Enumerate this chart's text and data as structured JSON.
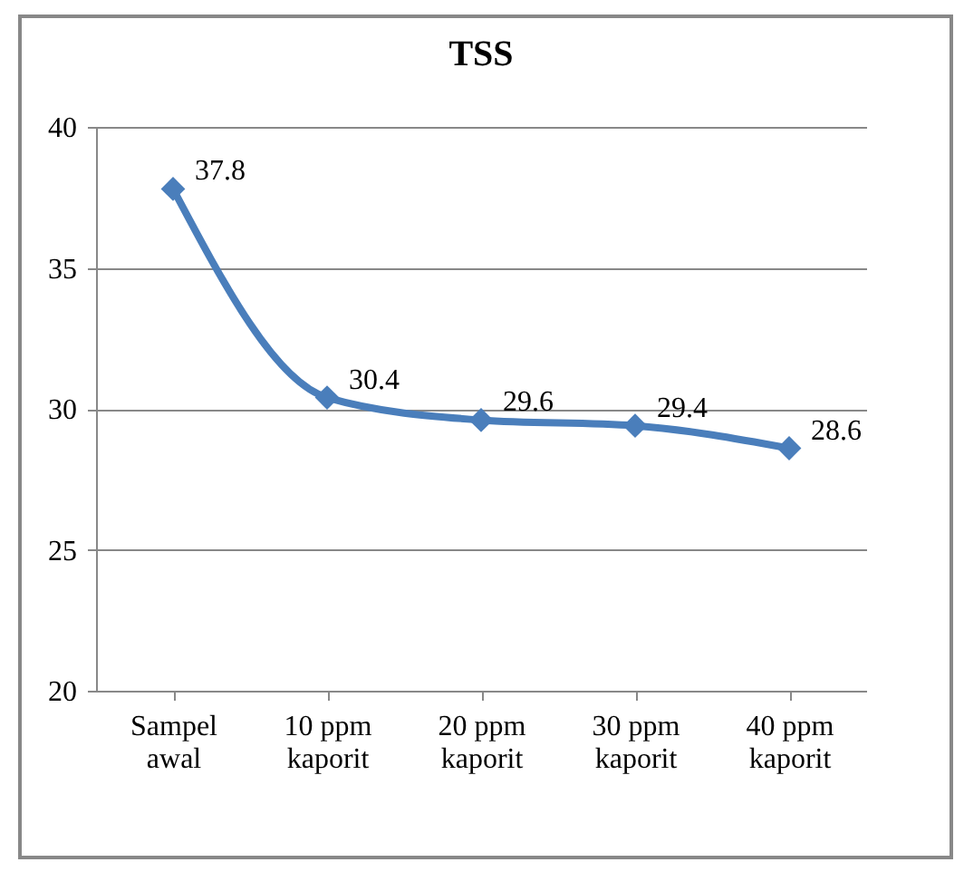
{
  "chart_data": {
    "type": "line",
    "title": "TSS",
    "categories": [
      "Sampel awal",
      "10 ppm kaporit",
      "20 ppm kaporit",
      "30 ppm kaporit",
      "40 ppm kaporit"
    ],
    "series": [
      {
        "color": "#4a7ebb",
        "values": [
          37.8,
          30.4,
          29.6,
          29.4,
          28.6
        ]
      }
    ],
    "ylim": [
      20,
      40
    ],
    "yticks": [
      20,
      25,
      30,
      35,
      40
    ],
    "grid": "y",
    "marker": "diamond",
    "data_labels": true
  }
}
